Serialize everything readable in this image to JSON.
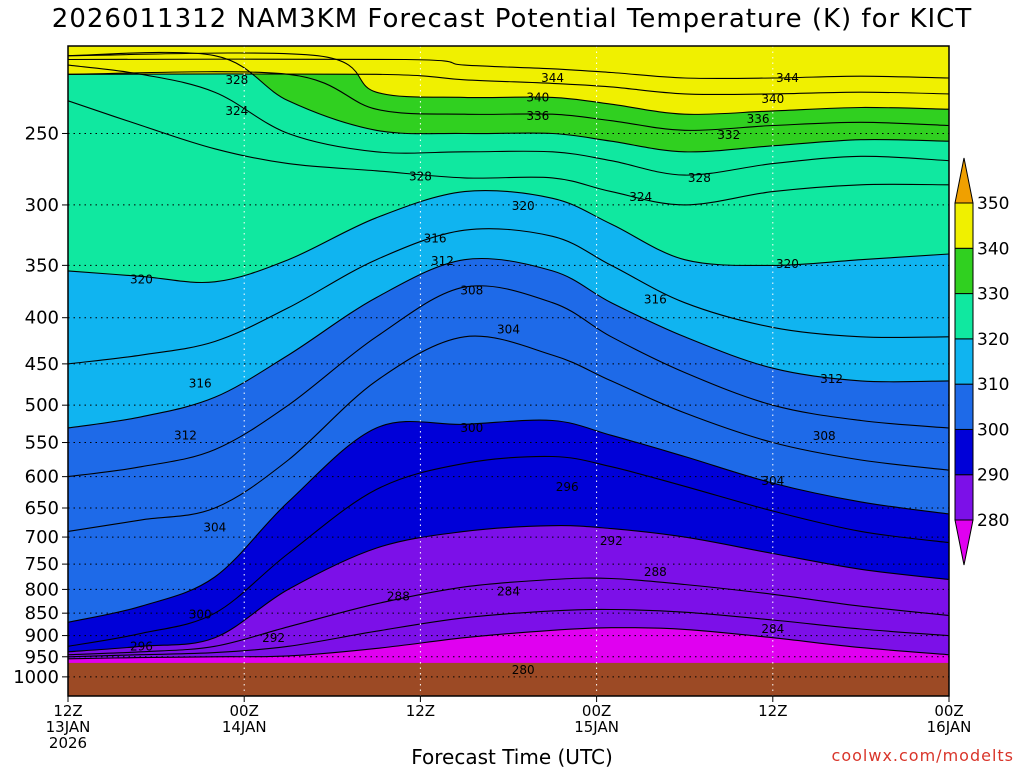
{
  "title": "2026011312 NAM3KM Forecast Potential Temperature (K) for KICT",
  "xlabel": "Forecast Time (UTC)",
  "credit": "coolwx.com/modelts",
  "chart_data": {
    "type": "contour",
    "run": "2026011312",
    "model": "NAM3KM",
    "station": "KICT",
    "variable": "Potential Temperature (K)",
    "y_axis": {
      "scale": "log-pressure",
      "inverted": true,
      "range_hpa": [
        200,
        1050
      ],
      "ticks": [
        250,
        300,
        350,
        400,
        450,
        500,
        550,
        600,
        650,
        700,
        750,
        800,
        850,
        900,
        950,
        1000
      ]
    },
    "x_axis": {
      "range_hours": [
        0,
        60
      ],
      "ticks": [
        {
          "hour": 0,
          "lines": [
            "12Z",
            "13JAN",
            "2026"
          ]
        },
        {
          "hour": 12,
          "lines": [
            "00Z",
            "14JAN"
          ]
        },
        {
          "hour": 24,
          "lines": [
            "12Z"
          ]
        },
        {
          "hour": 36,
          "lines": [
            "00Z",
            "15JAN"
          ]
        },
        {
          "hour": 48,
          "lines": [
            "12Z"
          ]
        },
        {
          "hour": 60,
          "lines": [
            "00Z",
            "16JAN"
          ]
        }
      ]
    },
    "colorbar": {
      "levels": [
        280,
        290,
        300,
        310,
        320,
        330,
        340,
        350
      ],
      "colors": [
        "#e000f0",
        "#7c10e8",
        "#0000d8",
        "#1e6ae8",
        "#10b4f0",
        "#10e8a0",
        "#30d020",
        "#f0f000",
        "#f0a000"
      ]
    },
    "contour_interval": 2,
    "isentropes": [
      {
        "theta": 280,
        "points": [
          [
            0,
            955
          ],
          [
            5,
            952
          ],
          [
            10,
            950
          ],
          [
            15,
            948
          ],
          [
            21,
            930
          ],
          [
            27,
            905
          ],
          [
            33,
            888
          ],
          [
            37,
            882
          ],
          [
            42,
            886
          ],
          [
            48,
            905
          ],
          [
            54,
            928
          ],
          [
            60,
            945
          ]
        ]
      },
      {
        "theta": 284,
        "points": [
          [
            0,
            950
          ],
          [
            5,
            945
          ],
          [
            10,
            940
          ],
          [
            15,
            925
          ],
          [
            21,
            890
          ],
          [
            27,
            860
          ],
          [
            33,
            845
          ],
          [
            37,
            842
          ],
          [
            42,
            848
          ],
          [
            48,
            865
          ],
          [
            54,
            885
          ],
          [
            60,
            900
          ]
        ]
      },
      {
        "theta": 288,
        "points": [
          [
            0,
            945
          ],
          [
            5,
            938
          ],
          [
            10,
            925
          ],
          [
            15,
            880
          ],
          [
            21,
            830
          ],
          [
            27,
            795
          ],
          [
            33,
            780
          ],
          [
            37,
            778
          ],
          [
            42,
            790
          ],
          [
            48,
            810
          ],
          [
            54,
            835
          ],
          [
            60,
            855
          ]
        ]
      },
      {
        "theta": 292,
        "points": [
          [
            0,
            938
          ],
          [
            5,
            925
          ],
          [
            10,
            905
          ],
          [
            15,
            800
          ],
          [
            21,
            720
          ],
          [
            27,
            690
          ],
          [
            33,
            680
          ],
          [
            37,
            685
          ],
          [
            42,
            700
          ],
          [
            48,
            730
          ],
          [
            54,
            760
          ],
          [
            60,
            780
          ]
        ]
      },
      {
        "theta": 296,
        "points": [
          [
            0,
            925
          ],
          [
            5,
            895
          ],
          [
            10,
            850
          ],
          [
            15,
            730
          ],
          [
            21,
            620
          ],
          [
            27,
            580
          ],
          [
            33,
            570
          ],
          [
            37,
            585
          ],
          [
            42,
            615
          ],
          [
            48,
            655
          ],
          [
            54,
            690
          ],
          [
            60,
            710
          ]
        ]
      },
      {
        "theta": 300,
        "points": [
          [
            0,
            870
          ],
          [
            5,
            835
          ],
          [
            10,
            775
          ],
          [
            15,
            640
          ],
          [
            21,
            530
          ],
          [
            27,
            525
          ],
          [
            33,
            520
          ],
          [
            37,
            540
          ],
          [
            42,
            570
          ],
          [
            48,
            610
          ],
          [
            54,
            640
          ],
          [
            60,
            660
          ]
        ]
      },
      {
        "theta": 304,
        "points": [
          [
            0,
            690
          ],
          [
            5,
            670
          ],
          [
            10,
            650
          ],
          [
            15,
            575
          ],
          [
            21,
            470
          ],
          [
            27,
            420
          ],
          [
            33,
            440
          ],
          [
            37,
            470
          ],
          [
            42,
            510
          ],
          [
            48,
            550
          ],
          [
            54,
            575
          ],
          [
            60,
            590
          ]
        ]
      },
      {
        "theta": 308,
        "points": [
          [
            0,
            600
          ],
          [
            5,
            585
          ],
          [
            10,
            560
          ],
          [
            15,
            500
          ],
          [
            21,
            420
          ],
          [
            27,
            370
          ],
          [
            33,
            385
          ],
          [
            37,
            420
          ],
          [
            42,
            460
          ],
          [
            48,
            500
          ],
          [
            54,
            520
          ],
          [
            60,
            530
          ]
        ]
      },
      {
        "theta": 312,
        "points": [
          [
            0,
            530
          ],
          [
            5,
            515
          ],
          [
            10,
            490
          ],
          [
            15,
            440
          ],
          [
            21,
            380
          ],
          [
            27,
            345
          ],
          [
            33,
            355
          ],
          [
            37,
            385
          ],
          [
            42,
            420
          ],
          [
            48,
            455
          ],
          [
            54,
            470
          ],
          [
            60,
            470
          ]
        ]
      },
      {
        "theta": 316,
        "points": [
          [
            0,
            450
          ],
          [
            5,
            440
          ],
          [
            10,
            425
          ],
          [
            15,
            390
          ],
          [
            21,
            345
          ],
          [
            27,
            320
          ],
          [
            33,
            325
          ],
          [
            37,
            350
          ],
          [
            42,
            385
          ],
          [
            48,
            410
          ],
          [
            54,
            420
          ],
          [
            60,
            420
          ]
        ]
      },
      {
        "theta": 320,
        "points": [
          [
            0,
            355
          ],
          [
            5,
            360
          ],
          [
            10,
            365
          ],
          [
            15,
            345
          ],
          [
            21,
            310
          ],
          [
            27,
            290
          ],
          [
            33,
            295
          ],
          [
            37,
            315
          ],
          [
            42,
            345
          ],
          [
            48,
            350
          ],
          [
            54,
            345
          ],
          [
            60,
            340
          ]
        ]
      },
      {
        "theta": 324,
        "points": [
          [
            0,
            230
          ],
          [
            5,
            245
          ],
          [
            10,
            260
          ],
          [
            15,
            270
          ],
          [
            21,
            275
          ],
          [
            27,
            280
          ],
          [
            33,
            280
          ],
          [
            37,
            290
          ],
          [
            42,
            300
          ],
          [
            48,
            290
          ],
          [
            54,
            285
          ],
          [
            60,
            285
          ]
        ]
      },
      {
        "theta": 328,
        "points": [
          [
            0,
            210
          ],
          [
            5,
            215
          ],
          [
            10,
            225
          ],
          [
            15,
            250
          ],
          [
            21,
            262
          ],
          [
            27,
            262
          ],
          [
            33,
            262
          ],
          [
            37,
            268
          ],
          [
            42,
            278
          ],
          [
            48,
            270
          ],
          [
            54,
            265
          ],
          [
            60,
            268
          ]
        ]
      },
      {
        "theta": 332,
        "points": [
          [
            10,
            205
          ],
          [
            15,
            230
          ],
          [
            21,
            248
          ],
          [
            27,
            250
          ],
          [
            33,
            250
          ],
          [
            37,
            255
          ],
          [
            42,
            262
          ],
          [
            48,
            258
          ],
          [
            54,
            254
          ],
          [
            60,
            255
          ]
        ]
      },
      {
        "theta": 336,
        "points": [
          [
            15,
            215
          ],
          [
            21,
            235
          ],
          [
            27,
            238
          ],
          [
            33,
            238
          ],
          [
            37,
            242
          ],
          [
            42,
            248
          ],
          [
            48,
            245
          ],
          [
            54,
            243
          ],
          [
            60,
            245
          ]
        ]
      },
      {
        "theta": 340,
        "points": [
          [
            17,
            205
          ],
          [
            21,
            225
          ],
          [
            27,
            228
          ],
          [
            33,
            228
          ],
          [
            37,
            232
          ],
          [
            42,
            238
          ],
          [
            48,
            236
          ],
          [
            54,
            234
          ],
          [
            60,
            235
          ]
        ]
      },
      {
        "theta": 344,
        "points": [
          [
            21,
            215
          ],
          [
            27,
            218
          ],
          [
            33,
            220
          ],
          [
            37,
            222
          ],
          [
            42,
            226
          ],
          [
            48,
            226
          ],
          [
            54,
            225
          ],
          [
            60,
            226
          ]
        ]
      },
      {
        "theta": 348,
        "points": [
          [
            23,
            207
          ],
          [
            27,
            210
          ],
          [
            33,
            212
          ],
          [
            37,
            214
          ],
          [
            42,
            217
          ],
          [
            48,
            217
          ],
          [
            54,
            216
          ],
          [
            60,
            217
          ]
        ]
      }
    ],
    "contour_labels": [
      {
        "text": "328",
        "hour": 11.5,
        "p": 218
      },
      {
        "text": "324",
        "hour": 11.5,
        "p": 236
      },
      {
        "text": "344",
        "hour": 33,
        "p": 217
      },
      {
        "text": "340",
        "hour": 32,
        "p": 228
      },
      {
        "text": "336",
        "hour": 32,
        "p": 239
      },
      {
        "text": "344",
        "hour": 49,
        "p": 217
      },
      {
        "text": "340",
        "hour": 48,
        "p": 229
      },
      {
        "text": "336",
        "hour": 47,
        "p": 241
      },
      {
        "text": "332",
        "hour": 45,
        "p": 251
      },
      {
        "text": "328",
        "hour": 24,
        "p": 279
      },
      {
        "text": "328",
        "hour": 43,
        "p": 280
      },
      {
        "text": "324",
        "hour": 39,
        "p": 294
      },
      {
        "text": "320",
        "hour": 31,
        "p": 301
      },
      {
        "text": "316",
        "hour": 25,
        "p": 327
      },
      {
        "text": "312",
        "hour": 25.5,
        "p": 346
      },
      {
        "text": "320",
        "hour": 5,
        "p": 363
      },
      {
        "text": "320",
        "hour": 49,
        "p": 349
      },
      {
        "text": "308",
        "hour": 27.5,
        "p": 373
      },
      {
        "text": "316",
        "hour": 40,
        "p": 382
      },
      {
        "text": "304",
        "hour": 30,
        "p": 412
      },
      {
        "text": "316",
        "hour": 9,
        "p": 473
      },
      {
        "text": "312",
        "hour": 52,
        "p": 468
      },
      {
        "text": "312",
        "hour": 8,
        "p": 540
      },
      {
        "text": "300",
        "hour": 27.5,
        "p": 530
      },
      {
        "text": "308",
        "hour": 51.5,
        "p": 541
      },
      {
        "text": "296",
        "hour": 34,
        "p": 616
      },
      {
        "text": "304",
        "hour": 48,
        "p": 607
      },
      {
        "text": "304",
        "hour": 10,
        "p": 683
      },
      {
        "text": "292",
        "hour": 37,
        "p": 707
      },
      {
        "text": "288",
        "hour": 40,
        "p": 765
      },
      {
        "text": "288",
        "hour": 22.5,
        "p": 815
      },
      {
        "text": "284",
        "hour": 30,
        "p": 804
      },
      {
        "text": "300",
        "hour": 9,
        "p": 853
      },
      {
        "text": "284",
        "hour": 48,
        "p": 885
      },
      {
        "text": "292",
        "hour": 14,
        "p": 906
      },
      {
        "text": "296",
        "hour": 5,
        "p": 925
      },
      {
        "text": "280",
        "hour": 31,
        "p": 983
      }
    ],
    "terrain_pressure_hpa": 965,
    "grid": true
  }
}
